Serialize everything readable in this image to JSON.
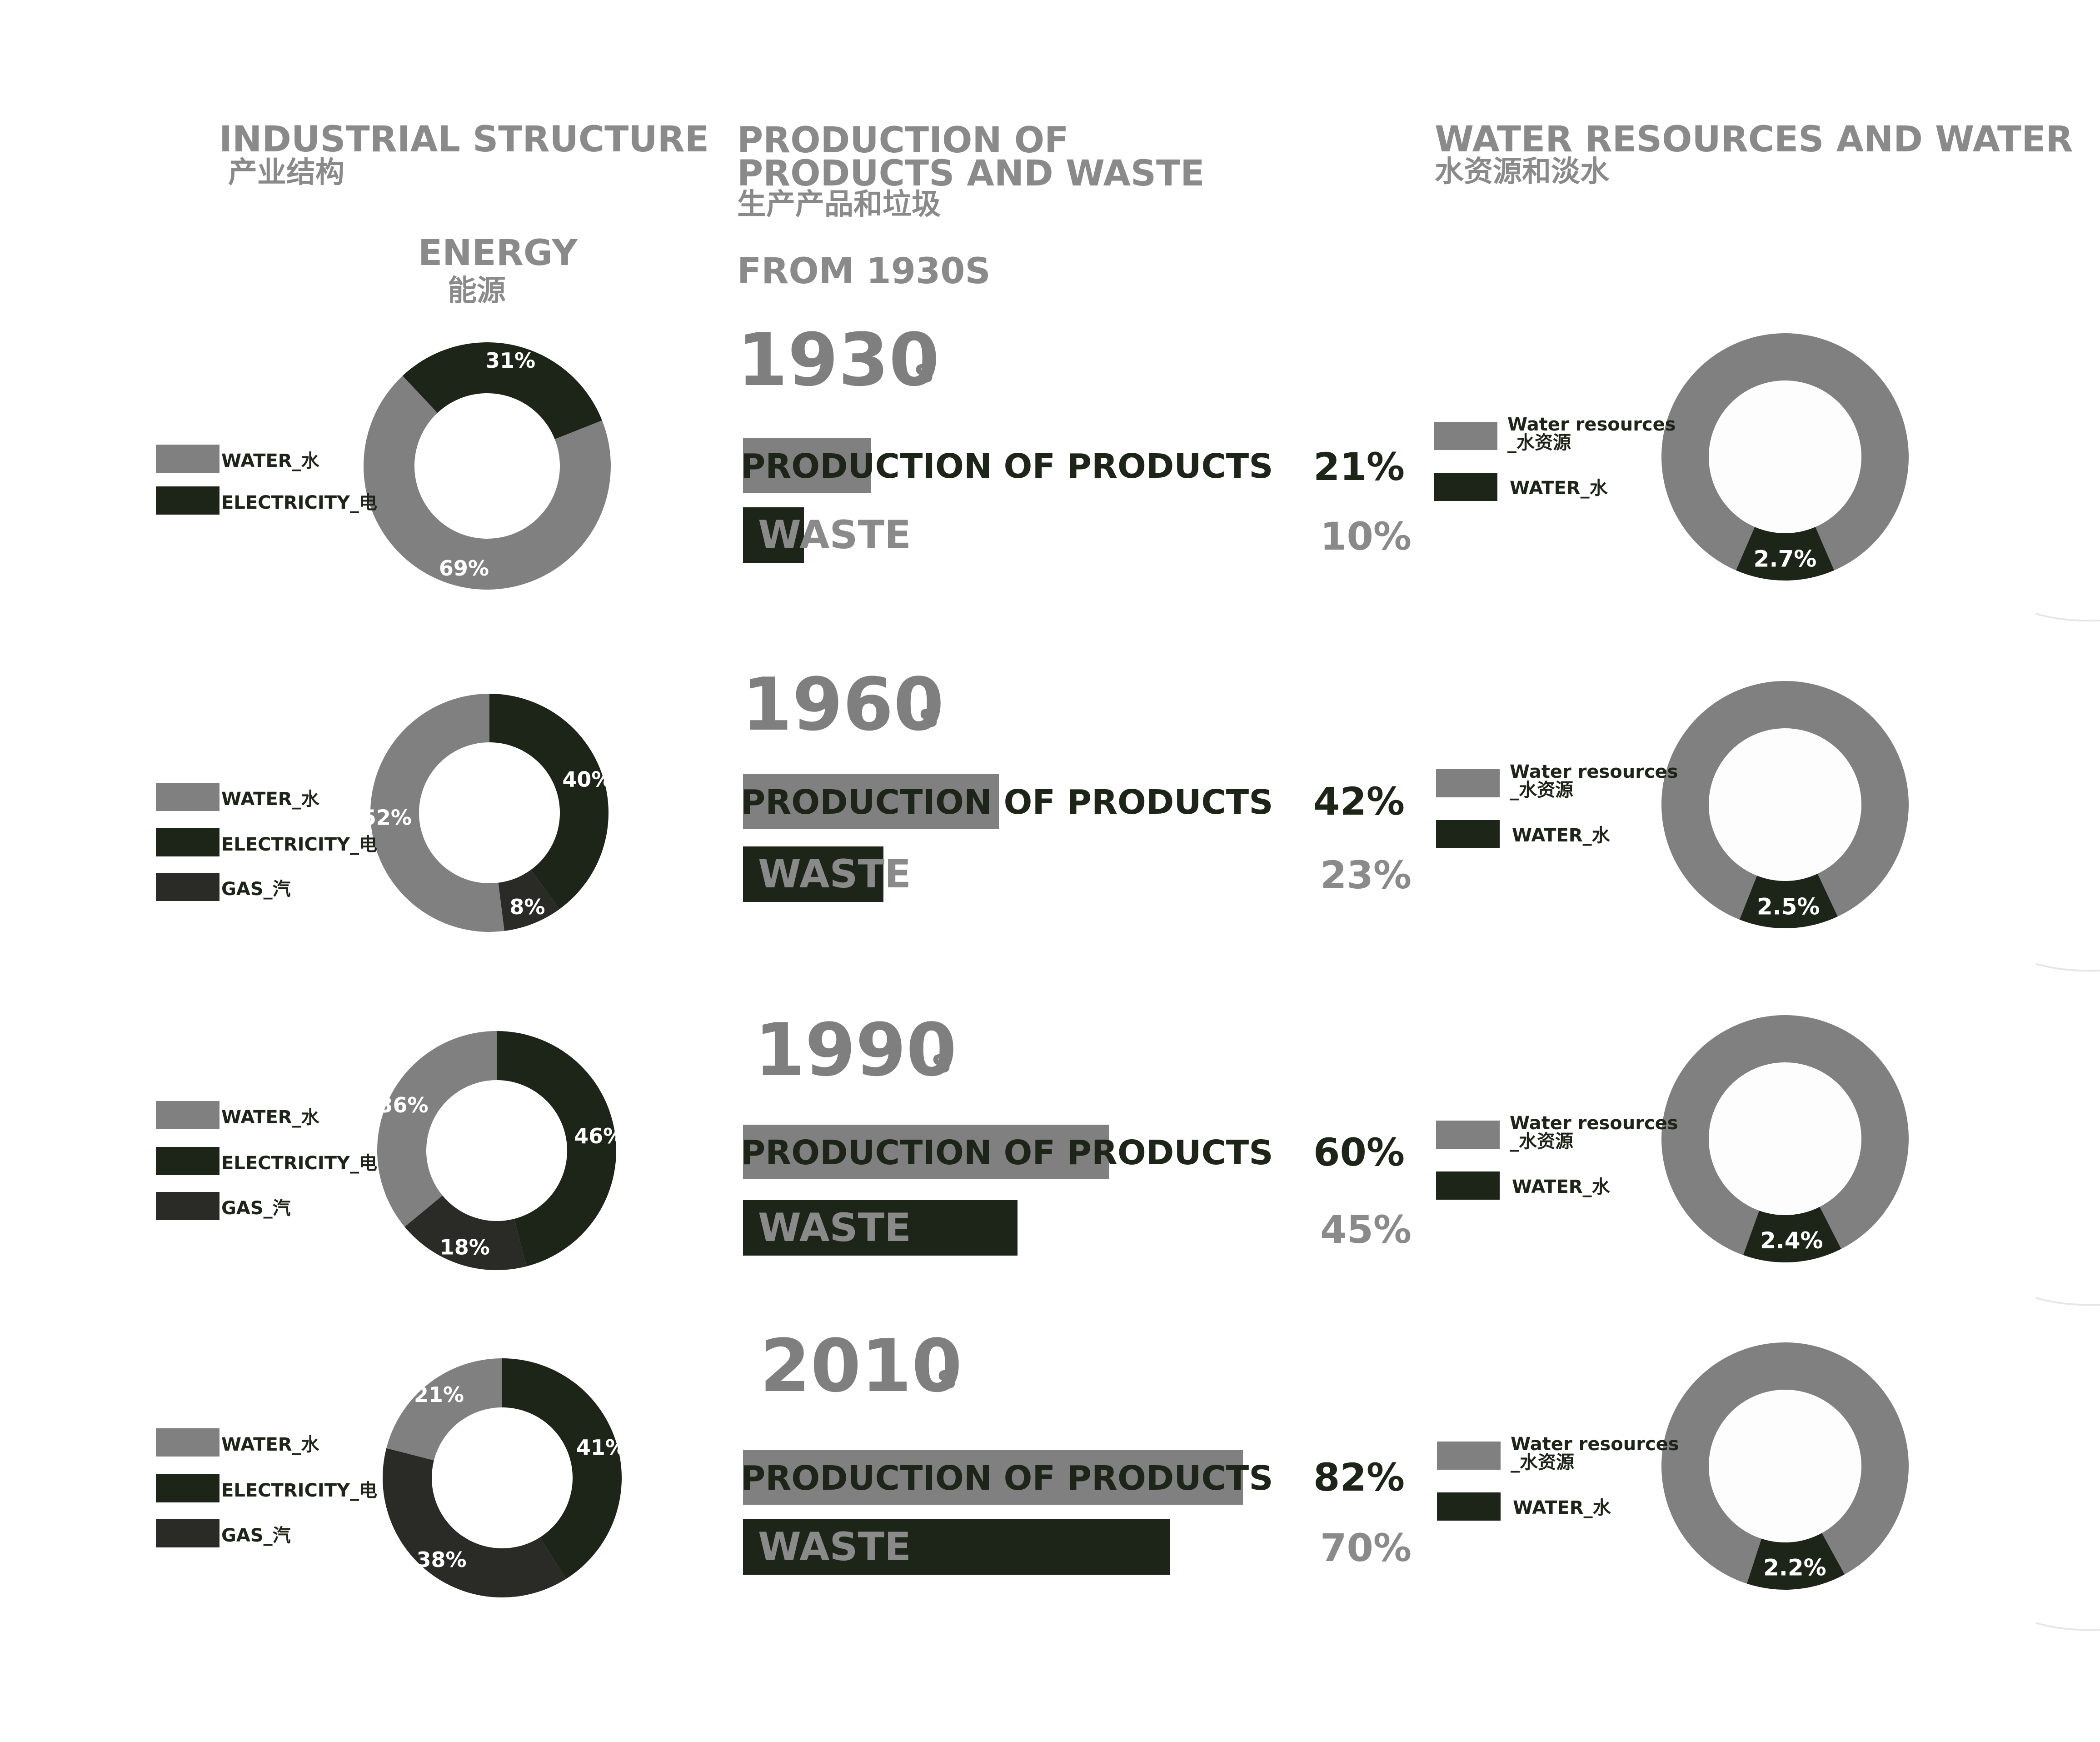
{
  "headers": {
    "industrial": {
      "en": "INDUSTRIAL STRUCTURE",
      "cn": "产业结构"
    },
    "energy": {
      "en": "ENERGY",
      "cn": "能源"
    },
    "production": {
      "line1": "PRODUCTION OF",
      "line2": "PRODUCTS AND WASTE",
      "cn": "生产产品和垃圾",
      "from": "FROM 1930S"
    },
    "water": {
      "en": "WATER RESOURCES AND WATER",
      "cn": "水资源和淡水"
    }
  },
  "colors": {
    "water": "#808080",
    "electricity": "#1d2418",
    "gas": "#2a2a27",
    "production_bar": "#808080",
    "waste_bar": "#1d2418",
    "water_resources": "#808080",
    "water_fresh": "#1d2418"
  },
  "legend": {
    "water": "WATER_水",
    "electricity": "ELECTRICITY_电",
    "gas": "GAS_汽",
    "water_resources_line1": "Water resources",
    "water_resources_line2": "_水资源",
    "water_fresh": "WATER_水"
  },
  "rows": [
    {
      "decade": "1930",
      "suffix": "s",
      "production_label": "PRODUCTION OF PRODUCTS",
      "waste_label": "WASTE",
      "production_pct": "21%",
      "waste_pct": "10%"
    },
    {
      "decade": "1960",
      "suffix": "s",
      "production_label": "PRODUCTION OF PRODUCTS",
      "waste_label": "WASTE",
      "production_pct": "42%",
      "waste_pct": "23%"
    },
    {
      "decade": "1990",
      "suffix": "s",
      "production_label": "PRODUCTION OF PRODUCTS",
      "waste_label": "WASTE",
      "production_pct": "60%",
      "waste_pct": "45%"
    },
    {
      "decade": "2010",
      "suffix": "s",
      "production_label": "PRODUCTION OF PRODUCTS",
      "waste_label": "WASTE",
      "production_pct": "82%",
      "waste_pct": "70%"
    }
  ],
  "chart_data": [
    {
      "type": "pie",
      "chart": "energy",
      "categories": [
        "1930",
        "1960",
        "1990",
        "2010"
      ],
      "series_names": [
        "WATER_水",
        "ELECTRICITY_电",
        "GAS_汽"
      ],
      "values": [
        {
          "water": 69,
          "electricity": 31,
          "gas": 0
        },
        {
          "water": 52,
          "electricity": 40,
          "gas": 8
        },
        {
          "water": 36,
          "electricity": 46,
          "gas": 18
        },
        {
          "water": 21,
          "electricity": 41,
          "gas": 38
        }
      ],
      "labels": [
        {
          "water": "69%",
          "electricity": "31%"
        },
        {
          "water": "52%",
          "electricity": "40%",
          "gas": "8%"
        },
        {
          "water": "36%",
          "electricity": "46%",
          "gas": "18%"
        },
        {
          "water": "21%",
          "electricity": "41%",
          "gas": "38%"
        }
      ]
    },
    {
      "type": "bar",
      "chart": "production_and_waste",
      "categories": [
        "1930",
        "1960",
        "1990",
        "2010"
      ],
      "series": [
        {
          "name": "PRODUCTION OF PRODUCTS",
          "values": [
            21,
            42,
            60,
            82
          ]
        },
        {
          "name": "WASTE",
          "values": [
            10,
            23,
            45,
            70
          ]
        }
      ]
    },
    {
      "type": "pie",
      "chart": "water_resources",
      "categories": [
        "1930",
        "1960",
        "1990",
        "2010"
      ],
      "fresh_water_pct": [
        2.7,
        2.5,
        2.4,
        2.2
      ],
      "labels": [
        "2.7%",
        "2.5%",
        "2.4%",
        "2.2%"
      ]
    }
  ]
}
